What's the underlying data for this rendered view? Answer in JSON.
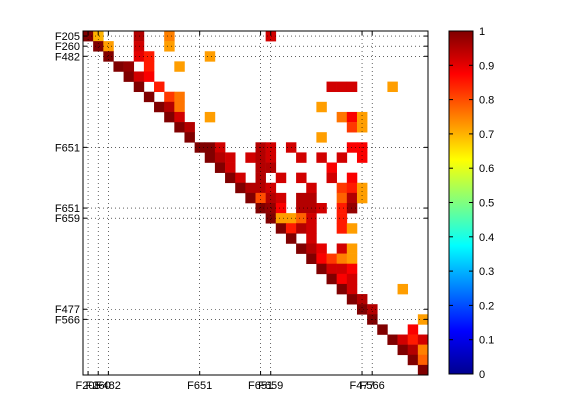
{
  "chart_data": {
    "type": "heatmap",
    "title": "",
    "xlabel": "",
    "ylabel": "",
    "size": 34,
    "grid": "dotted",
    "x_ticks": [
      {
        "index": 0,
        "label": "F205"
      },
      {
        "index": 1,
        "label": "F260"
      },
      {
        "index": 2,
        "label": "F482"
      },
      {
        "index": 11,
        "label": "F651"
      },
      {
        "index": 17,
        "label": "F651"
      },
      {
        "index": 18,
        "label": "F659"
      },
      {
        "index": 27,
        "label": "F477"
      },
      {
        "index": 28,
        "label": "F566"
      }
    ],
    "y_ticks": [
      {
        "index": 0,
        "label": "F205"
      },
      {
        "index": 1,
        "label": "F260"
      },
      {
        "index": 2,
        "label": "F482"
      },
      {
        "index": 11,
        "label": "F651"
      },
      {
        "index": 17,
        "label": "F651"
      },
      {
        "index": 18,
        "label": "F659"
      },
      {
        "index": 27,
        "label": "F477"
      },
      {
        "index": 28,
        "label": "F566"
      }
    ],
    "colorbar": {
      "min": 0,
      "max": 1,
      "ticks": [
        0,
        0.1,
        0.2,
        0.3,
        0.4,
        0.5,
        0.6,
        0.7,
        0.8,
        0.9,
        1
      ],
      "tick_labels": [
        "0",
        "0.1",
        "0.2",
        "0.3",
        "0.4",
        "0.5",
        "0.6",
        "0.7",
        "0.8",
        "0.9",
        "1"
      ],
      "colormap": "jet"
    },
    "cells": [
      [
        0,
        0,
        1
      ],
      [
        0,
        1,
        0.7
      ],
      [
        0,
        5,
        0.95
      ],
      [
        0,
        8,
        0.75
      ],
      [
        0,
        18,
        0.92
      ],
      [
        1,
        1,
        1
      ],
      [
        1,
        2,
        0.72
      ],
      [
        1,
        5,
        0.92
      ],
      [
        1,
        8,
        0.72
      ],
      [
        2,
        2,
        1
      ],
      [
        2,
        5,
        0.9
      ],
      [
        2,
        6,
        0.85
      ],
      [
        2,
        12,
        0.72
      ],
      [
        3,
        3,
        1
      ],
      [
        3,
        4,
        0.98
      ],
      [
        3,
        6,
        0.85
      ],
      [
        3,
        9,
        0.72
      ],
      [
        4,
        4,
        1
      ],
      [
        4,
        5,
        0.92
      ],
      [
        4,
        6,
        0.88
      ],
      [
        5,
        5,
        1
      ],
      [
        5,
        7,
        0.85
      ],
      [
        5,
        24,
        0.92
      ],
      [
        5,
        25,
        0.92
      ],
      [
        5,
        26,
        0.92
      ],
      [
        5,
        30,
        0.72
      ],
      [
        6,
        6,
        1
      ],
      [
        6,
        8,
        0.82
      ],
      [
        6,
        9,
        0.76
      ],
      [
        7,
        7,
        1
      ],
      [
        7,
        8,
        0.95
      ],
      [
        7,
        9,
        0.76
      ],
      [
        7,
        23,
        0.72
      ],
      [
        8,
        8,
        1
      ],
      [
        8,
        9,
        0.92
      ],
      [
        8,
        12,
        0.72
      ],
      [
        8,
        25,
        0.76
      ],
      [
        8,
        26,
        0.88
      ],
      [
        8,
        27,
        0.72
      ],
      [
        9,
        9,
        1
      ],
      [
        9,
        10,
        0.95
      ],
      [
        9,
        26,
        0.82
      ],
      [
        9,
        27,
        0.72
      ],
      [
        10,
        10,
        1
      ],
      [
        10,
        23,
        0.72
      ],
      [
        11,
        11,
        1
      ],
      [
        11,
        12,
        1
      ],
      [
        11,
        13,
        0.92
      ],
      [
        11,
        17,
        0.95
      ],
      [
        11,
        18,
        0.92
      ],
      [
        11,
        20,
        0.92
      ],
      [
        11,
        26,
        0.88
      ],
      [
        11,
        27,
        0.88
      ],
      [
        12,
        12,
        1
      ],
      [
        12,
        13,
        0.95
      ],
      [
        12,
        14,
        0.92
      ],
      [
        12,
        16,
        0.92
      ],
      [
        12,
        17,
        0.95
      ],
      [
        12,
        18,
        0.92
      ],
      [
        12,
        21,
        0.92
      ],
      [
        12,
        23,
        0.92
      ],
      [
        12,
        25,
        0.92
      ],
      [
        12,
        27,
        0.88
      ],
      [
        13,
        13,
        1
      ],
      [
        13,
        14,
        0.92
      ],
      [
        13,
        17,
        0.95
      ],
      [
        13,
        18,
        0.95
      ],
      [
        13,
        24,
        0.88
      ],
      [
        14,
        14,
        1
      ],
      [
        14,
        15,
        0.92
      ],
      [
        14,
        17,
        0.95
      ],
      [
        14,
        19,
        0.92
      ],
      [
        14,
        21,
        0.92
      ],
      [
        14,
        24,
        0.92
      ],
      [
        14,
        26,
        0.88
      ],
      [
        15,
        15,
        1
      ],
      [
        15,
        16,
        0.95
      ],
      [
        15,
        17,
        0.95
      ],
      [
        15,
        18,
        0.92
      ],
      [
        15,
        22,
        0.92
      ],
      [
        15,
        25,
        0.82
      ],
      [
        15,
        26,
        0.85
      ],
      [
        15,
        27,
        0.72
      ],
      [
        16,
        16,
        1
      ],
      [
        16,
        17,
        0.8
      ],
      [
        16,
        18,
        0.95
      ],
      [
        16,
        19,
        0.92
      ],
      [
        16,
        21,
        0.95
      ],
      [
        16,
        22,
        0.95
      ],
      [
        16,
        25,
        0.78
      ],
      [
        16,
        26,
        0.95
      ],
      [
        16,
        27,
        0.72
      ],
      [
        17,
        17,
        1
      ],
      [
        17,
        18,
        0.98
      ],
      [
        17,
        19,
        0.88
      ],
      [
        17,
        21,
        0.95
      ],
      [
        17,
        22,
        0.95
      ],
      [
        17,
        23,
        0.92
      ],
      [
        17,
        25,
        0.85
      ],
      [
        17,
        26,
        0.98
      ],
      [
        18,
        18,
        1
      ],
      [
        18,
        19,
        0.72
      ],
      [
        18,
        20,
        0.72
      ],
      [
        18,
        21,
        0.78
      ],
      [
        18,
        22,
        0.92
      ],
      [
        18,
        25,
        0.85
      ],
      [
        19,
        19,
        1
      ],
      [
        19,
        20,
        0.85
      ],
      [
        19,
        21,
        0.95
      ],
      [
        19,
        22,
        0.92
      ],
      [
        19,
        25,
        0.85
      ],
      [
        19,
        26,
        0.72
      ],
      [
        20,
        20,
        1
      ],
      [
        20,
        22,
        0.92
      ],
      [
        21,
        21,
        1
      ],
      [
        21,
        22,
        0.95
      ],
      [
        21,
        23,
        0.9
      ],
      [
        21,
        25,
        0.92
      ],
      [
        21,
        26,
        0.72
      ],
      [
        22,
        22,
        1
      ],
      [
        22,
        23,
        0.88
      ],
      [
        22,
        24,
        0.82
      ],
      [
        22,
        25,
        0.75
      ],
      [
        22,
        26,
        0.72
      ],
      [
        23,
        23,
        1
      ],
      [
        23,
        24,
        0.92
      ],
      [
        23,
        25,
        0.92
      ],
      [
        23,
        26,
        0.88
      ],
      [
        24,
        24,
        1
      ],
      [
        24,
        25,
        0.88
      ],
      [
        24,
        26,
        0.92
      ],
      [
        25,
        25,
        1
      ],
      [
        25,
        26,
        0.92
      ],
      [
        25,
        31,
        0.72
      ],
      [
        26,
        26,
        1
      ],
      [
        26,
        27,
        0.95
      ],
      [
        27,
        27,
        1
      ],
      [
        27,
        28,
        0.95
      ],
      [
        28,
        28,
        1
      ],
      [
        28,
        33,
        0.72
      ],
      [
        29,
        29,
        1
      ],
      [
        29,
        32,
        0.88
      ],
      [
        30,
        30,
        1
      ],
      [
        30,
        31,
        0.92
      ],
      [
        30,
        32,
        0.85
      ],
      [
        30,
        33,
        0.92
      ],
      [
        31,
        31,
        1
      ],
      [
        31,
        32,
        0.95
      ],
      [
        31,
        33,
        0.75
      ],
      [
        32,
        32,
        1
      ],
      [
        32,
        33,
        0.78
      ],
      [
        33,
        33,
        1
      ]
    ]
  }
}
